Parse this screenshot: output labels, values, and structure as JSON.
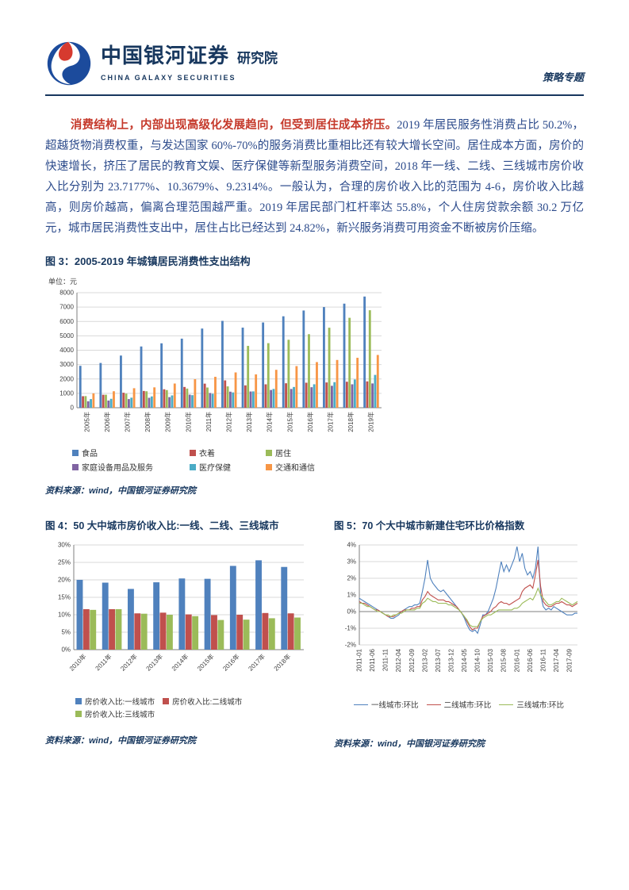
{
  "header": {
    "brand_cn": "中国银河证券",
    "brand_suffix": "研究院",
    "brand_en": "CHINA GALAXY SECURITIES",
    "doc_type": "策略专题"
  },
  "paragraph": {
    "lead": "消费结构上，内部出现高级化发展趋向，但受到居住成本挤压。",
    "body": "2019 年居民服务性消费占比 50.2%，超越货物消费权重，与发达国家 60%-70%的服务消费比重相比还有较大增长空间。居住成本方面，房价的快速增长，挤压了居民的教育文娱、医疗保健等新型服务消费空间，2018 年一线、二线、三线城市房价收入比分别为 23.7177%、10.3679%、9.2314%。一般认为，合理的房价收入比的范围为 4-6，房价收入比越高，则房价越高，偏离合理范围越严重。2019 年居民部门杠杆率达 55.8%，个人住房贷款余额 30.2 万亿元，城市居民消费性支出中，居住占比已经达到 24.82%，新兴服务消费可用资金不断被房价压缩。"
  },
  "figures": {
    "fig3_unit_label": "单位：元",
    "source_note": "资料来源：wind，中国银河证券研究院"
  },
  "chart_data": [
    {
      "type": "bar",
      "title": "图 3：2005-2019 年城镇居民消费性支出结构",
      "unit": "单位：元",
      "categories": [
        "2005年",
        "2006年",
        "2007年",
        "2008年",
        "2009年",
        "2010年",
        "2011年",
        "2012年",
        "2013年",
        "2014年",
        "2015年",
        "2016年",
        "2017年",
        "2018年",
        "2019年"
      ],
      "ylim": [
        0,
        8000
      ],
      "ystep": 1000,
      "grid": true,
      "legend_position": "bottom",
      "series": [
        {
          "name": "食品",
          "color": "#4F81BD",
          "values": [
            2914,
            3112,
            3628,
            4260,
            4479,
            4805,
            5506,
            6041,
            5571,
            5928,
            6360,
            6762,
            7001,
            7239,
            7733
          ]
        },
        {
          "name": "衣着",
          "color": "#C0504D",
          "values": [
            801,
            902,
            1042,
            1166,
            1284,
            1444,
            1675,
            1902,
            1554,
            1627,
            1701,
            1739,
            1758,
            1808,
            1832
          ]
        },
        {
          "name": "居住",
          "color": "#9BBB59",
          "values": [
            808,
            904,
            982,
            1145,
            1228,
            1332,
            1405,
            1484,
            4301,
            4490,
            4726,
            5114,
            5564,
            6255,
            6780
          ]
        },
        {
          "name": "家庭设备用品及服务",
          "color": "#8064A2",
          "values": [
            446,
            498,
            601,
            691,
            737,
            908,
            1023,
            1116,
            1129,
            1233,
            1306,
            1427,
            1525,
            1629,
            1689
          ]
        },
        {
          "name": "医疗保健",
          "color": "#4BACC6",
          "values": [
            601,
            621,
            699,
            786,
            856,
            872,
            969,
            1064,
            1136,
            1306,
            1443,
            1631,
            1777,
            1965,
            2283
          ]
        },
        {
          "name": "交通和通信",
          "color": "#F79646",
          "values": [
            997,
            1147,
            1357,
            1417,
            1683,
            1984,
            2150,
            2455,
            2318,
            2637,
            2895,
            3174,
            3322,
            3473,
            3671
          ]
        }
      ]
    },
    {
      "type": "bar",
      "title": "图 4：50 大中城市房价收入比:一线、二线、三线城市",
      "categories": [
        "2010年",
        "2011年",
        "2012年",
        "2013年",
        "2014年",
        "2015年",
        "2016年",
        "2017年",
        "2018年"
      ],
      "ylim": [
        0,
        30
      ],
      "ystep": 5,
      "yunit": "%",
      "grid": true,
      "legend_position": "bottom",
      "series": [
        {
          "name": "房价收入比:一线城市",
          "color": "#4F81BD",
          "values": [
            20.0,
            19.2,
            17.4,
            19.3,
            20.4,
            20.3,
            24.0,
            25.6,
            23.7
          ]
        },
        {
          "name": "房价收入比:二线城市",
          "color": "#C0504D",
          "values": [
            11.6,
            11.6,
            10.4,
            10.6,
            10.1,
            9.9,
            10.0,
            10.5,
            10.4
          ]
        },
        {
          "name": "房价收入比:三线城市",
          "color": "#9BBB59",
          "values": [
            11.4,
            11.6,
            10.3,
            10.0,
            9.6,
            8.5,
            8.6,
            9.0,
            9.2
          ]
        }
      ]
    },
    {
      "type": "line",
      "title": "图 5：70 个大中城市新建住宅环比价格指数",
      "x_monthly_range": {
        "start": "2011-01",
        "end": "2017-12"
      },
      "x_tick_every": 5,
      "x_tick_labels": [
        "2011-01",
        "2011-06",
        "2011-11",
        "2012-04",
        "2012-09",
        "2013-02",
        "2013-07",
        "2013-12",
        "2014-05",
        "2014-10",
        "2015-03",
        "2015-08",
        "2016-01",
        "2016-06",
        "2016-11",
        "2017-04",
        "2017-09"
      ],
      "ylim": [
        -2,
        4
      ],
      "ystep": 1,
      "yunit": "%",
      "grid": true,
      "legend_position": "bottom",
      "series": [
        {
          "name": "一线城市:环比",
          "color": "#4F81BD",
          "values": [
            0.8,
            0.7,
            0.6,
            0.5,
            0.4,
            0.3,
            0.2,
            0.1,
            0.0,
            -0.1,
            -0.2,
            -0.3,
            -0.4,
            -0.4,
            -0.3,
            -0.2,
            0.0,
            0.1,
            0.2,
            0.3,
            0.3,
            0.4,
            0.4,
            0.5,
            1.2,
            2.0,
            3.1,
            2.0,
            1.7,
            1.5,
            1.3,
            1.2,
            1.3,
            1.1,
            0.9,
            0.7,
            0.5,
            0.3,
            0.1,
            -0.1,
            -0.4,
            -0.8,
            -1.1,
            -1.2,
            -1.1,
            -1.3,
            -0.8,
            -0.2,
            -0.2,
            0.0,
            0.4,
            0.8,
            1.4,
            2.2,
            3.0,
            2.4,
            2.8,
            2.4,
            2.8,
            3.2,
            3.9,
            3.0,
            3.5,
            2.6,
            2.2,
            2.4,
            2.0,
            2.6,
            3.9,
            1.0,
            0.3,
            0.1,
            0.2,
            0.1,
            0.3,
            0.2,
            0.1,
            0.0,
            -0.1,
            -0.2,
            -0.2,
            -0.2,
            -0.1,
            -0.1
          ]
        },
        {
          "name": "二线城市:环比",
          "color": "#C0504D",
          "values": [
            0.6,
            0.5,
            0.5,
            0.4,
            0.3,
            0.2,
            0.1,
            0.1,
            0.0,
            -0.1,
            -0.2,
            -0.3,
            -0.3,
            -0.3,
            -0.2,
            -0.1,
            0.0,
            0.1,
            0.1,
            0.1,
            0.2,
            0.2,
            0.3,
            0.3,
            0.7,
            0.9,
            1.2,
            1.0,
            0.9,
            0.8,
            0.7,
            0.7,
            0.7,
            0.6,
            0.6,
            0.5,
            0.4,
            0.3,
            0.1,
            -0.1,
            -0.3,
            -0.6,
            -0.9,
            -1.1,
            -1.0,
            -1.0,
            -0.6,
            -0.3,
            -0.2,
            -0.1,
            0.0,
            0.2,
            0.3,
            0.5,
            0.6,
            0.5,
            0.5,
            0.4,
            0.5,
            0.6,
            0.7,
            0.8,
            1.2,
            1.4,
            1.5,
            1.6,
            1.4,
            2.2,
            3.1,
            1.5,
            0.6,
            0.4,
            0.3,
            0.3,
            0.4,
            0.5,
            0.5,
            0.6,
            0.5,
            0.4,
            0.4,
            0.3,
            0.4,
            0.5
          ]
        },
        {
          "name": "三线城市:环比",
          "color": "#9BBB59",
          "values": [
            0.5,
            0.5,
            0.4,
            0.3,
            0.3,
            0.2,
            0.1,
            0.0,
            0.0,
            -0.1,
            -0.2,
            -0.2,
            -0.3,
            -0.2,
            -0.2,
            -0.1,
            -0.1,
            0.0,
            0.1,
            0.1,
            0.1,
            0.1,
            0.2,
            0.2,
            0.5,
            0.6,
            0.8,
            0.7,
            0.6,
            0.6,
            0.5,
            0.5,
            0.5,
            0.5,
            0.4,
            0.4,
            0.3,
            0.2,
            0.1,
            -0.1,
            -0.3,
            -0.5,
            -0.8,
            -0.9,
            -0.9,
            -0.9,
            -0.6,
            -0.4,
            -0.3,
            -0.2,
            -0.2,
            -0.1,
            0.0,
            0.1,
            0.1,
            0.1,
            0.1,
            0.1,
            0.1,
            0.2,
            0.2,
            0.3,
            0.5,
            0.6,
            0.7,
            0.8,
            0.7,
            1.0,
            1.4,
            1.0,
            0.8,
            0.6,
            0.4,
            0.4,
            0.5,
            0.6,
            0.6,
            0.8,
            0.7,
            0.6,
            0.5,
            0.4,
            0.5,
            0.6
          ]
        }
      ]
    }
  ]
}
